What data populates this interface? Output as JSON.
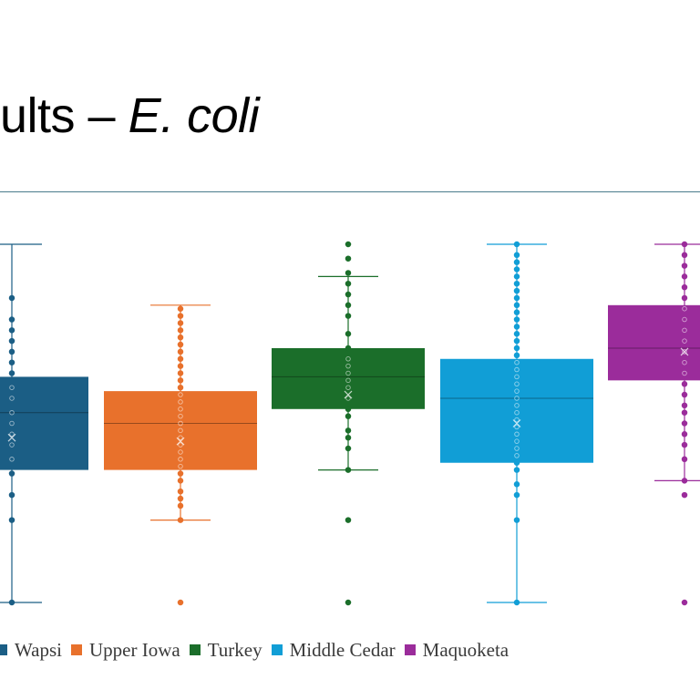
{
  "title": {
    "prefix": "ults – ",
    "italic": "E. coli"
  },
  "chart_data": {
    "type": "box",
    "ylim": [
      0,
      100
    ],
    "grid": false,
    "legend_position": "bottom",
    "series": [
      {
        "name": "Wapsi",
        "color": "#1b5e85",
        "min": 0,
        "q1": 37,
        "median": 53,
        "q3": 63,
        "max": 100,
        "mean": 46,
        "outliers": [
          0,
          23,
          30,
          36,
          40,
          44,
          47,
          50,
          53,
          57,
          60,
          64,
          67,
          70,
          73,
          76,
          79,
          85
        ],
        "outlier_color": "#1b5e85"
      },
      {
        "name": "Upper Iowa",
        "color": "#e8712c",
        "min": 23,
        "q1": 37,
        "median": 50,
        "q3": 59,
        "max": 83,
        "mean": 45,
        "outliers": [
          0,
          23,
          27,
          29,
          31,
          34,
          36,
          38,
          40,
          42,
          44,
          46,
          48,
          50,
          52,
          54,
          56,
          58,
          60,
          62,
          64,
          66,
          68,
          70,
          72,
          74,
          76,
          78,
          80,
          82
        ],
        "outlier_color": "#e8712c"
      },
      {
        "name": "Turkey",
        "color": "#1b6e2a",
        "min": 37,
        "q1": 54,
        "median": 63,
        "q3": 71,
        "max": 91,
        "mean": 58,
        "outliers": [
          0,
          23,
          37,
          43,
          46,
          48,
          52,
          54,
          57,
          60,
          62,
          64,
          66,
          68,
          71,
          75,
          80,
          83,
          86,
          89,
          92,
          96,
          100
        ],
        "outlier_color": "#1b6e2a"
      },
      {
        "name": "Middle Cedar",
        "color": "#119ed6",
        "min": 0,
        "q1": 39,
        "median": 57,
        "q3": 68,
        "max": 100,
        "mean": 50,
        "outliers": [
          0,
          23,
          30,
          33,
          37,
          39,
          41,
          43,
          45,
          47,
          49,
          51,
          53,
          55,
          57,
          59,
          61,
          63,
          65,
          67,
          69,
          71,
          73,
          75,
          77,
          79,
          81,
          83,
          85,
          87,
          89,
          91,
          93,
          95,
          97,
          100
        ],
        "outlier_color": "#119ed6"
      },
      {
        "name": "Maquoketa",
        "color": "#9b2c9b",
        "min": 34,
        "q1": 62,
        "median": 71,
        "q3": 83,
        "max": 100,
        "mean": 70,
        "outliers": [
          0,
          30,
          34,
          40,
          44,
          47,
          50,
          53,
          55,
          58,
          61,
          64,
          67,
          70,
          73,
          76,
          79,
          82,
          85,
          88,
          91,
          94,
          97,
          100
        ],
        "outlier_color": "#9b2c9b"
      }
    ]
  }
}
